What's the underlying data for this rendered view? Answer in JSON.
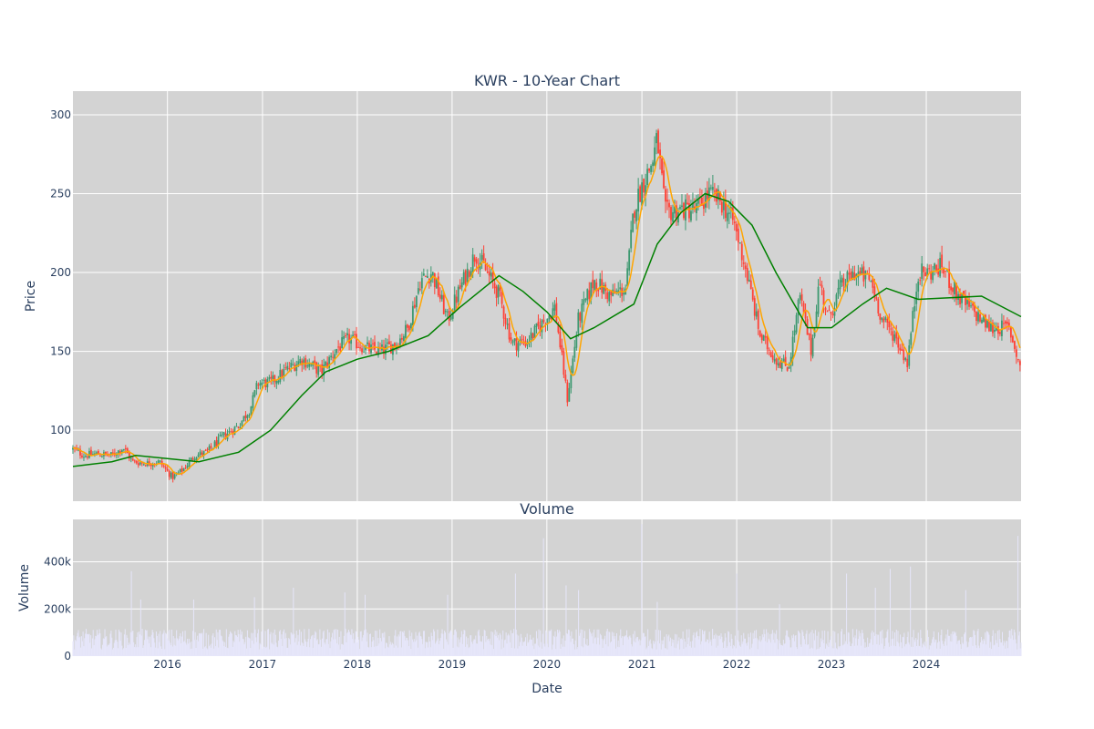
{
  "chart_data": [
    {
      "type": "candlestick",
      "title": "KWR - 10-Year Chart",
      "xlabel": "",
      "ylabel": "Price",
      "x_range": [
        "2015-01-02",
        "2024-12-31"
      ],
      "ylim": [
        55,
        315
      ],
      "yticks": [
        100,
        150,
        200,
        250,
        300
      ],
      "grid": true,
      "plot_background": "#d3d3d3",
      "colors": {
        "up": "#3d9970",
        "down": "#ff4136",
        "ma_short": "#ffa500",
        "ma_long": "#008000"
      },
      "close_path": [
        [
          "2015-01-02",
          88
        ],
        [
          "2015-02-15",
          84
        ],
        [
          "2015-04-01",
          85
        ],
        [
          "2015-06-01",
          84
        ],
        [
          "2015-07-15",
          89
        ],
        [
          "2015-08-20",
          80
        ],
        [
          "2015-10-15",
          79
        ],
        [
          "2015-12-01",
          80
        ],
        [
          "2016-01-20",
          70
        ],
        [
          "2016-03-01",
          75
        ],
        [
          "2016-04-15",
          84
        ],
        [
          "2016-06-01",
          86
        ],
        [
          "2016-08-01",
          96
        ],
        [
          "2016-10-01",
          103
        ],
        [
          "2016-11-15",
          114
        ],
        [
          "2016-12-15",
          130
        ],
        [
          "2017-02-01",
          130
        ],
        [
          "2017-04-01",
          138
        ],
        [
          "2017-06-01",
          145
        ],
        [
          "2017-08-15",
          137
        ],
        [
          "2017-10-15",
          152
        ],
        [
          "2017-12-01",
          158
        ],
        [
          "2018-02-01",
          152
        ],
        [
          "2018-04-01",
          150
        ],
        [
          "2018-06-01",
          155
        ],
        [
          "2018-07-15",
          165
        ],
        [
          "2018-09-01",
          195
        ],
        [
          "2018-10-15",
          200
        ],
        [
          "2018-12-15",
          170
        ],
        [
          "2019-02-01",
          190
        ],
        [
          "2019-04-01",
          212
        ],
        [
          "2019-05-15",
          200
        ],
        [
          "2019-07-01",
          186
        ],
        [
          "2019-08-20",
          155
        ],
        [
          "2019-10-15",
          156
        ],
        [
          "2019-12-15",
          168
        ],
        [
          "2020-02-01",
          178
        ],
        [
          "2020-03-20",
          120
        ],
        [
          "2020-05-01",
          170
        ],
        [
          "2020-07-01",
          195
        ],
        [
          "2020-09-01",
          185
        ],
        [
          "2020-11-01",
          190
        ],
        [
          "2020-12-01",
          240
        ],
        [
          "2021-01-01",
          255
        ],
        [
          "2021-02-10",
          270
        ],
        [
          "2021-03-01",
          285
        ],
        [
          "2021-04-01",
          238
        ],
        [
          "2021-06-01",
          240
        ],
        [
          "2021-08-01",
          240
        ],
        [
          "2021-09-15",
          250
        ],
        [
          "2021-11-01",
          245
        ],
        [
          "2021-12-20",
          232
        ],
        [
          "2022-02-01",
          205
        ],
        [
          "2022-04-01",
          160
        ],
        [
          "2022-06-01",
          145
        ],
        [
          "2022-07-20",
          140
        ],
        [
          "2022-09-01",
          185
        ],
        [
          "2022-10-15",
          150
        ],
        [
          "2022-11-15",
          195
        ],
        [
          "2022-12-20",
          170
        ],
        [
          "2023-02-01",
          190
        ],
        [
          "2023-04-01",
          200
        ],
        [
          "2023-06-01",
          195
        ],
        [
          "2023-07-15",
          170
        ],
        [
          "2023-09-01",
          160
        ],
        [
          "2023-10-20",
          143
        ],
        [
          "2023-12-01",
          200
        ],
        [
          "2024-01-15",
          200
        ],
        [
          "2024-03-01",
          204
        ],
        [
          "2024-05-01",
          185
        ],
        [
          "2024-07-01",
          175
        ],
        [
          "2024-09-01",
          165
        ],
        [
          "2024-11-15",
          165
        ],
        [
          "2024-12-31",
          138
        ]
      ],
      "ma_long_path": [
        [
          "2015-01-02",
          77
        ],
        [
          "2015-06-01",
          80
        ],
        [
          "2015-09-01",
          84
        ],
        [
          "2016-01-01",
          82
        ],
        [
          "2016-05-01",
          80
        ],
        [
          "2016-10-01",
          86
        ],
        [
          "2017-02-01",
          100
        ],
        [
          "2017-06-01",
          122
        ],
        [
          "2017-09-01",
          137
        ],
        [
          "2018-01-01",
          145
        ],
        [
          "2018-05-01",
          150
        ],
        [
          "2018-10-01",
          160
        ],
        [
          "2019-02-01",
          178
        ],
        [
          "2019-07-01",
          198
        ],
        [
          "2019-10-01",
          188
        ],
        [
          "2020-01-01",
          175
        ],
        [
          "2020-04-01",
          158
        ],
        [
          "2020-07-01",
          165
        ],
        [
          "2020-12-01",
          180
        ],
        [
          "2021-03-01",
          218
        ],
        [
          "2021-06-01",
          238
        ],
        [
          "2021-09-01",
          250
        ],
        [
          "2021-12-01",
          245
        ],
        [
          "2022-03-01",
          230
        ],
        [
          "2022-06-01",
          200
        ],
        [
          "2022-10-01",
          165
        ],
        [
          "2023-01-01",
          165
        ],
        [
          "2023-05-01",
          180
        ],
        [
          "2023-08-01",
          190
        ],
        [
          "2023-12-01",
          183
        ],
        [
          "2024-04-01",
          184
        ],
        [
          "2024-08-01",
          185
        ],
        [
          "2024-12-31",
          172
        ]
      ]
    },
    {
      "type": "bar",
      "title": "Volume",
      "xlabel": "Date",
      "ylabel": "Volume",
      "ylim": [
        0,
        580000
      ],
      "yticks": [
        0,
        200000,
        400000
      ],
      "ytick_labels": [
        "0",
        "200k",
        "400k"
      ],
      "xticks": [
        "2016",
        "2017",
        "2018",
        "2019",
        "2020",
        "2021",
        "2022",
        "2023",
        "2024"
      ],
      "bar_color": "#e6e6fa",
      "grid": true,
      "plot_background": "#d3d3d3",
      "typical_volume": 80000,
      "spikes": [
        [
          "2015-08-15",
          360000
        ],
        [
          "2015-09-20",
          240000
        ],
        [
          "2016-04-10",
          240000
        ],
        [
          "2016-12-01",
          250000
        ],
        [
          "2017-05-01",
          290000
        ],
        [
          "2017-11-15",
          270000
        ],
        [
          "2018-02-01",
          260000
        ],
        [
          "2018-12-15",
          260000
        ],
        [
          "2019-09-01",
          350000
        ],
        [
          "2019-12-20",
          500000
        ],
        [
          "2020-03-15",
          300000
        ],
        [
          "2020-05-01",
          280000
        ],
        [
          "2021-01-01",
          560000
        ],
        [
          "2021-03-01",
          230000
        ],
        [
          "2022-01-01",
          350000
        ],
        [
          "2022-06-15",
          220000
        ],
        [
          "2023-03-01",
          350000
        ],
        [
          "2023-06-20",
          290000
        ],
        [
          "2023-08-15",
          370000
        ],
        [
          "2023-11-01",
          380000
        ],
        [
          "2024-06-01",
          280000
        ],
        [
          "2024-12-20",
          510000
        ]
      ]
    }
  ]
}
